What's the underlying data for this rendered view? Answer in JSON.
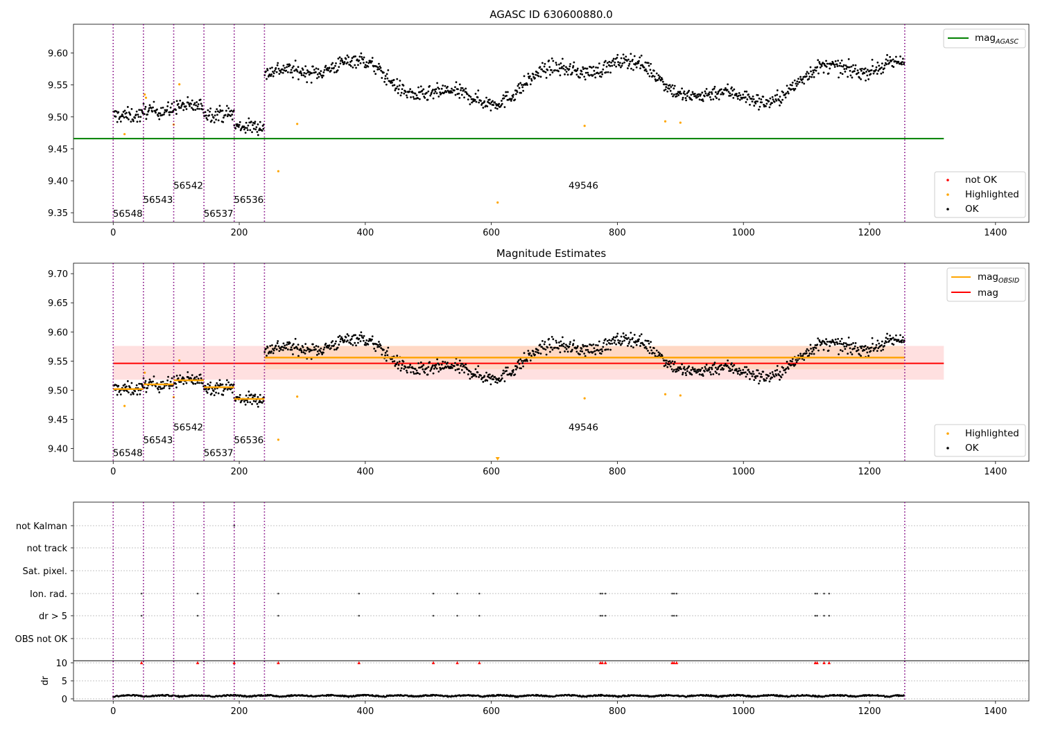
{
  "panel1": {
    "title": "AGASC ID 630600880.0",
    "ylim": [
      9.335,
      9.645
    ],
    "yticks": [
      "9.35",
      "9.40",
      "9.45",
      "9.50",
      "9.55",
      "9.60"
    ],
    "mag_agasc_value": 9.466,
    "legend_top": {
      "label": "mag",
      "sub": "AGASC"
    },
    "legend_points": [
      "not OK",
      "Highlighted",
      "OK"
    ]
  },
  "panel2": {
    "title": "Magnitude Estimates",
    "ylim": [
      9.378,
      9.718
    ],
    "yticks": [
      "9.40",
      "9.45",
      "9.50",
      "9.55",
      "9.60",
      "9.65",
      "9.70"
    ],
    "mag_value": 9.546,
    "mag_band": [
      9.518,
      9.576
    ],
    "obsid_band": [
      9.536,
      9.576
    ],
    "legend_lines": [
      {
        "label": "mag",
        "sub": "OBSID"
      },
      {
        "label": "mag",
        "sub": ""
      }
    ],
    "legend_points": [
      "Highlighted",
      "OK"
    ]
  },
  "panel3": {
    "flag_labels": [
      "not Kalman",
      "not track",
      "Sat. pixel.",
      "Ion. rad.",
      "dr > 5",
      "OBS not OK"
    ],
    "dr_label": "dr",
    "dr_yticks": [
      "0",
      "5",
      "10"
    ]
  },
  "x_axis": {
    "xlim": [
      -63,
      1453
    ],
    "ticks": [
      "0",
      "200",
      "400",
      "600",
      "800",
      "1000",
      "1200",
      "1400"
    ]
  },
  "obsids": [
    {
      "id": "56548",
      "start": 0,
      "end": 48,
      "mag": 9.502
    },
    {
      "id": "56543",
      "start": 48,
      "end": 96,
      "mag": 9.51
    },
    {
      "id": "56542",
      "start": 96,
      "end": 144,
      "mag": 9.517
    },
    {
      "id": "56537",
      "start": 144,
      "end": 192,
      "mag": 9.505
    },
    {
      "id": "56536",
      "start": 192,
      "end": 240,
      "mag": 9.485
    },
    {
      "id": "49546",
      "start": 240,
      "end": 1256,
      "mag": 9.556
    }
  ],
  "obs_boundaries": [
    0,
    48,
    96,
    144,
    192,
    240,
    1256
  ],
  "colors": {
    "obs_line": "#800080",
    "ok": "#000000",
    "highlighted": "#ffa500",
    "not_ok": "#ff0000",
    "agasc": "#008000",
    "mag": "#ff0000",
    "obsid": "#ffa500"
  },
  "chart_data": [
    {
      "type": "scatter",
      "title": "AGASC ID 630600880.0",
      "xlim": [
        -63,
        1453
      ],
      "ylim": [
        9.335,
        9.645
      ],
      "series": [
        {
          "name": "OK",
          "description": "~1250 magnitude samples: ~9.48-9.52 for x 0-240, ~9.52-9.61 for x 240-1256"
        },
        {
          "name": "Highlighted",
          "points": [
            [
              18,
              9.473
            ],
            [
              50,
              9.535
            ],
            [
              52,
              9.53
            ],
            [
              96,
              9.488
            ],
            [
              105,
              9.551
            ],
            [
              262,
              9.415
            ],
            [
              292,
              9.489
            ],
            [
              610,
              9.366
            ],
            [
              748,
              9.486
            ],
            [
              876,
              9.493
            ],
            [
              900,
              9.491
            ]
          ]
        },
        {
          "name": "mag_AGASC",
          "y": 9.466
        }
      ]
    },
    {
      "type": "scatter",
      "title": "Magnitude Estimates",
      "xlim": [
        -63,
        1453
      ],
      "ylim": [
        9.378,
        9.718
      ],
      "series": [
        {
          "name": "mag",
          "y": 9.546,
          "band": [
            9.518,
            9.576
          ]
        },
        {
          "name": "mag_OBSID",
          "values": [
            9.502,
            9.51,
            9.517,
            9.505,
            9.485,
            9.556
          ]
        },
        {
          "name": "Highlighted",
          "points": [
            [
              18,
              9.473
            ],
            [
              50,
              9.53
            ],
            [
              96,
              9.488
            ],
            [
              105,
              9.551
            ],
            [
              262,
              9.415
            ],
            [
              292,
              9.489
            ],
            [
              748,
              9.486
            ],
            [
              876,
              9.493
            ],
            [
              900,
              9.491
            ]
          ]
        }
      ]
    },
    {
      "type": "scatter",
      "xlim": [
        -63,
        1453
      ],
      "categories": [
        "not Kalman",
        "not track",
        "Sat. pixel.",
        "Ion. rad.",
        "dr > 5",
        "OBS not OK"
      ],
      "flag_events": {
        "not Kalman": [
          192
        ],
        "Ion. rad.": [
          45,
          134,
          262,
          390,
          508,
          546,
          581,
          773,
          776,
          781,
          887,
          890,
          894,
          1114,
          1117,
          1128,
          1136
        ],
        "dr > 5": [
          45,
          134,
          262,
          390,
          508,
          546,
          581,
          773,
          776,
          781,
          887,
          890,
          894,
          1114,
          1117,
          1128,
          1136
        ]
      },
      "dr": {
        "ylim": [
          0,
          10
        ],
        "typical": [
          0,
          1.2
        ],
        "clipped_at_10": [
          45,
          134,
          192,
          262,
          390,
          508,
          546,
          581,
          773,
          776,
          781,
          887,
          890,
          894,
          1114,
          1117,
          1128,
          1136
        ]
      }
    }
  ]
}
